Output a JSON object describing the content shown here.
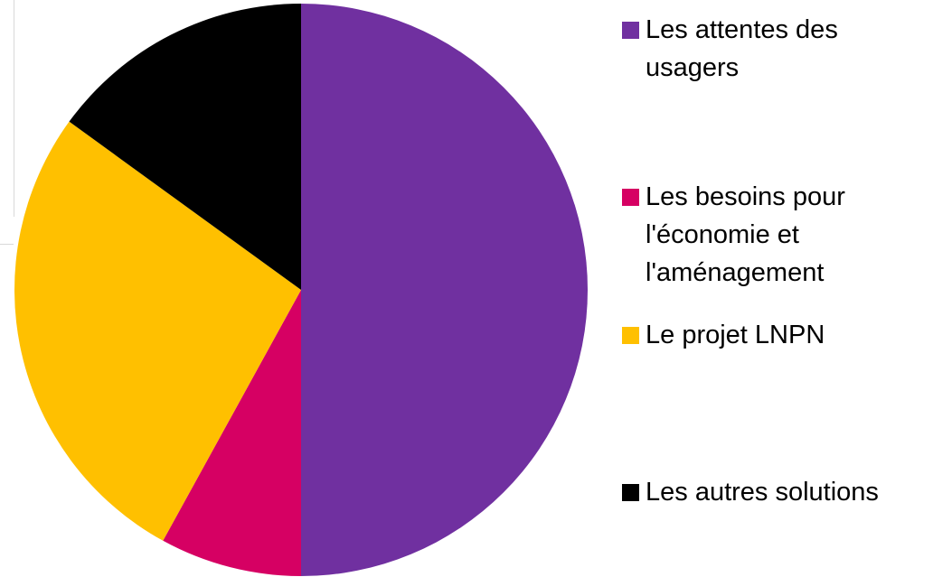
{
  "chart_data": {
    "type": "pie",
    "categories": [
      "Les attentes des usagers",
      "Les besoins pour l'économie et l'aménagement",
      "Le projet LNPN",
      "Les autres solutions"
    ],
    "values": [
      50,
      8,
      27,
      15
    ],
    "colors": [
      "#7030a0",
      "#d60063",
      "#ffc000",
      "#000000"
    ]
  }
}
